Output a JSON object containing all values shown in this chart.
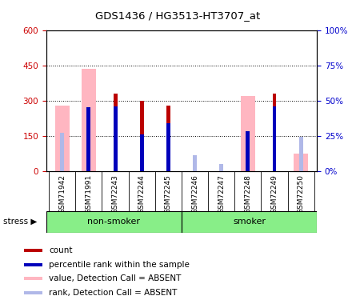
{
  "title": "GDS1436 / HG3513-HT3707_at",
  "samples": [
    "GSM71942",
    "GSM71991",
    "GSM72243",
    "GSM72244",
    "GSM72245",
    "GSM72246",
    "GSM72247",
    "GSM72248",
    "GSM72249",
    "GSM72250"
  ],
  "count_values": [
    0,
    0,
    330,
    300,
    280,
    0,
    0,
    0,
    330,
    0
  ],
  "rank_pct": [
    0,
    45,
    46,
    26,
    34,
    0,
    0,
    28,
    46,
    0
  ],
  "absent_value_values": [
    280,
    435,
    0,
    0,
    0,
    0,
    0,
    320,
    0,
    75
  ],
  "absent_rank_pct": [
    27,
    0,
    0,
    0,
    0,
    11,
    5,
    0,
    0,
    24
  ],
  "ylim_left": [
    0,
    600
  ],
  "ylim_right": [
    0,
    100
  ],
  "yticks_left": [
    0,
    150,
    300,
    450,
    600
  ],
  "yticks_left_labels": [
    "0",
    "150",
    "300",
    "450",
    "600"
  ],
  "yticks_right": [
    0,
    25,
    50,
    75,
    100
  ],
  "yticks_right_labels": [
    "0%",
    "25%",
    "50%",
    "75%",
    "100%"
  ],
  "color_count": "#bb0000",
  "color_rank": "#0000bb",
  "color_absent_value": "#ffb6c1",
  "color_absent_rank": "#b0b8e8",
  "left_tick_color": "#cc0000",
  "right_tick_color": "#0000cc",
  "non_smoker_color": "#88ee88",
  "smoker_color": "#88ee88",
  "grid_color": "#000000",
  "legend_items": [
    {
      "label": "count",
      "color": "#bb0000"
    },
    {
      "label": "percentile rank within the sample",
      "color": "#0000bb"
    },
    {
      "label": "value, Detection Call = ABSENT",
      "color": "#ffb6c1"
    },
    {
      "label": "rank, Detection Call = ABSENT",
      "color": "#b0b8e8"
    }
  ]
}
